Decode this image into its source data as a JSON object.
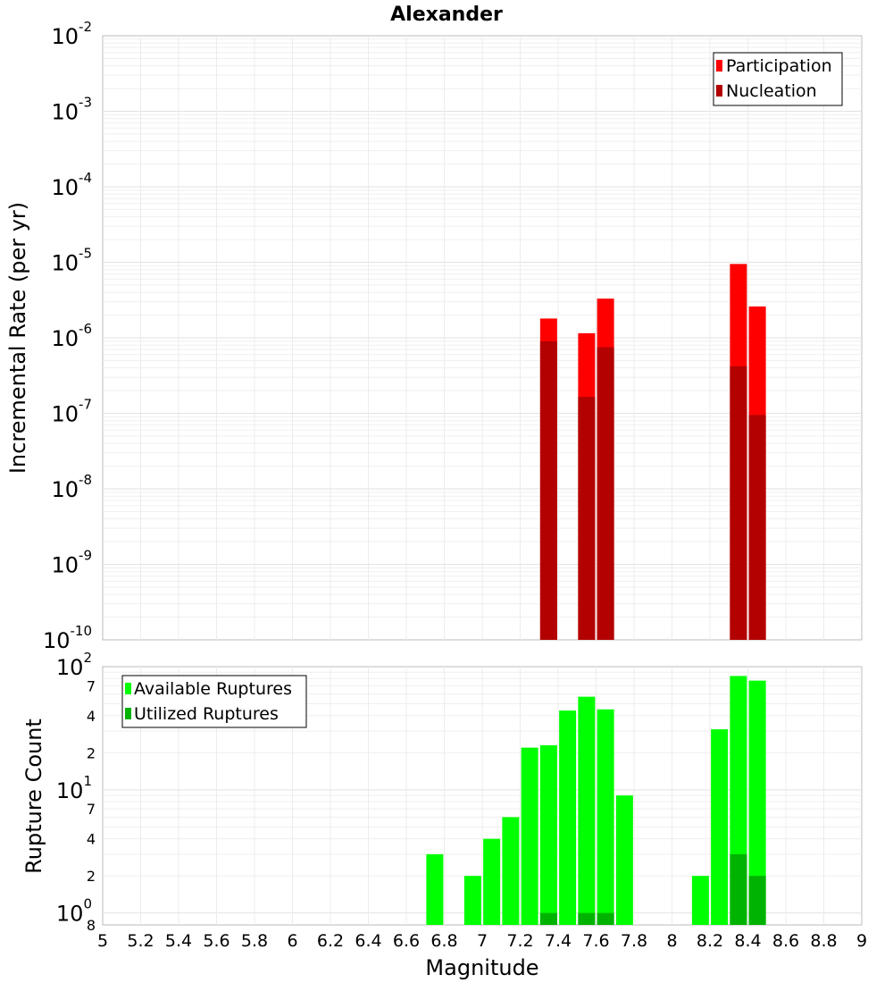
{
  "chart_data": [
    {
      "type": "bar",
      "title": "Alexander",
      "ylabel": "Incremental Rate (per yr)",
      "xlabel": "",
      "yscale": "log",
      "ylim": [
        1e-10,
        0.01
      ],
      "xlim": [
        5,
        9
      ],
      "grid": true,
      "legend_position": "top-right",
      "y_ticks": [
        {
          "base": "10",
          "exp": "-10"
        },
        {
          "base": "10",
          "exp": "-9"
        },
        {
          "base": "10",
          "exp": "-8"
        },
        {
          "base": "10",
          "exp": "-7"
        },
        {
          "base": "10",
          "exp": "-6"
        },
        {
          "base": "10",
          "exp": "-5"
        },
        {
          "base": "10",
          "exp": "-4"
        },
        {
          "base": "10",
          "exp": "-3"
        },
        {
          "base": "10",
          "exp": "-2"
        }
      ],
      "series": [
        {
          "name": "Participation",
          "color": "#ff0000",
          "points": [
            [
              7.35,
              1.8e-06
            ],
            [
              7.55,
              1.15e-06
            ],
            [
              7.65,
              3.3e-06
            ],
            [
              8.35,
              9.5e-06
            ],
            [
              8.45,
              2.6e-06
            ]
          ]
        },
        {
          "name": "Nucleation",
          "color": "#b30000",
          "points": [
            [
              7.35,
              9e-07
            ],
            [
              7.55,
              1.65e-07
            ],
            [
              7.65,
              7.5e-07
            ],
            [
              8.35,
              4.2e-07
            ],
            [
              8.45,
              9.5e-08
            ]
          ]
        }
      ]
    },
    {
      "type": "bar",
      "title": "",
      "ylabel": "Rupture Count",
      "xlabel": "Magnitude",
      "yscale": "log",
      "ylim": [
        0.8,
        100
      ],
      "xlim": [
        5,
        9
      ],
      "grid": true,
      "legend_position": "top-left",
      "x_ticks": [
        "5",
        "5.2",
        "5.4",
        "5.6",
        "5.8",
        "6",
        "6.2",
        "6.4",
        "6.6",
        "6.8",
        "7",
        "7.2",
        "7.4",
        "7.6",
        "7.8",
        "8",
        "8.2",
        "8.4",
        "8.6",
        "8.8",
        "9"
      ],
      "y_major_ticks": [
        {
          "base": "10",
          "exp": "0"
        },
        {
          "base": "10",
          "exp": "1"
        },
        {
          "base": "10",
          "exp": "2"
        }
      ],
      "y_minor_ticks": [
        {
          "value": 0.8,
          "label": "8"
        },
        {
          "value": 2,
          "label": "2"
        },
        {
          "value": 4,
          "label": "4"
        },
        {
          "value": 7,
          "label": "7"
        },
        {
          "value": 20,
          "label": "2"
        },
        {
          "value": 40,
          "label": "4"
        },
        {
          "value": 70,
          "label": "7"
        }
      ],
      "series": [
        {
          "name": "Available Ruptures",
          "color": "#00ff00",
          "points": [
            [
              6.75,
              3
            ],
            [
              6.95,
              2
            ],
            [
              7.05,
              4
            ],
            [
              7.15,
              6
            ],
            [
              7.25,
              22
            ],
            [
              7.35,
              23
            ],
            [
              7.45,
              44
            ],
            [
              7.55,
              57
            ],
            [
              7.65,
              45
            ],
            [
              7.75,
              9
            ],
            [
              8.15,
              2
            ],
            [
              8.25,
              31
            ],
            [
              8.35,
              84
            ],
            [
              8.45,
              77
            ]
          ]
        },
        {
          "name": "Utilized Ruptures",
          "color": "#00b300",
          "points": [
            [
              7.35,
              1
            ],
            [
              7.55,
              1
            ],
            [
              7.65,
              1
            ],
            [
              8.35,
              3
            ],
            [
              8.45,
              2
            ]
          ]
        }
      ]
    }
  ]
}
